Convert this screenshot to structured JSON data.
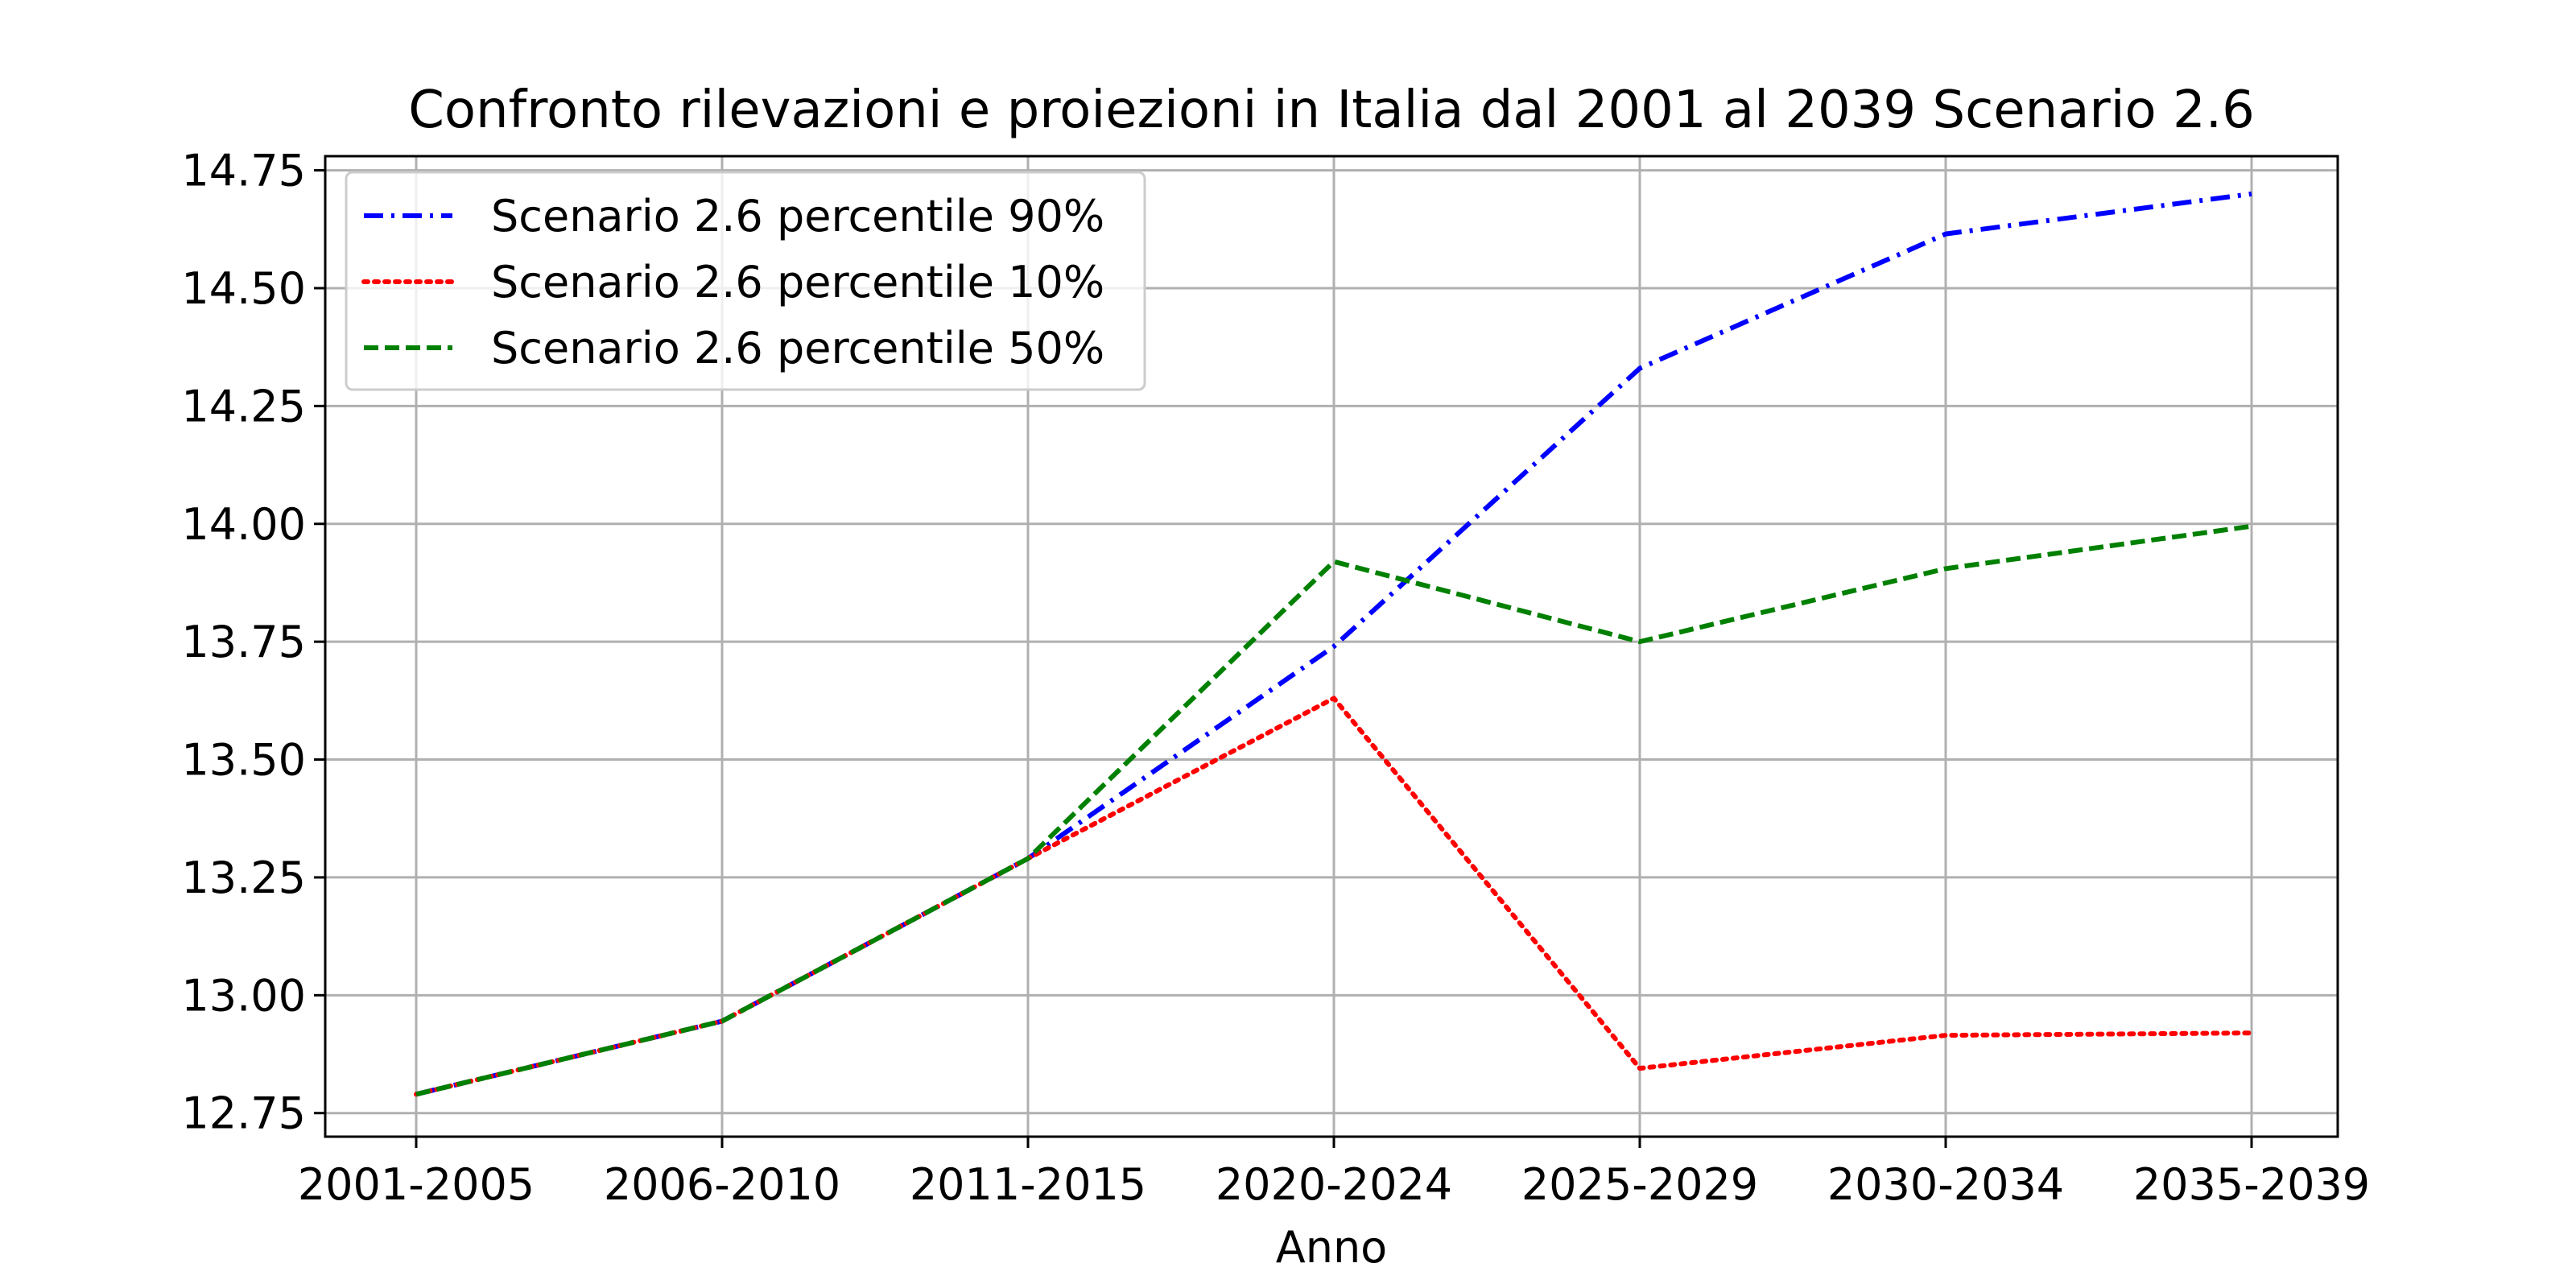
{
  "chart_data": {
    "type": "line",
    "title": "Confronto rilevazioni e proiezioni in Italia dal 2001 al 2039 Scenario 2.6",
    "xlabel": "Anno",
    "ylabel": "",
    "categories": [
      "2001-2005",
      "2006-2010",
      "2011-2015",
      "2020-2024",
      "2025-2029",
      "2030-2034",
      "2035-2039"
    ],
    "ylim": [
      12.7,
      14.78
    ],
    "yticks": [
      12.75,
      13.0,
      13.25,
      13.5,
      13.75,
      14.0,
      14.25,
      14.5,
      14.75
    ],
    "ytick_labels": [
      "12.75",
      "13.00",
      "13.25",
      "13.50",
      "13.75",
      "14.00",
      "14.25",
      "14.50",
      "14.75"
    ],
    "grid": true,
    "legend_position": "top-left",
    "series": [
      {
        "name": "Scenario 2.6 percentile 90%",
        "color": "#0000ff",
        "style": "dashdot",
        "values": [
          12.79,
          12.945,
          13.29,
          13.74,
          14.33,
          14.615,
          14.7
        ]
      },
      {
        "name": "Scenario 2.6 percentile 10%",
        "color": "#ff0000",
        "style": "dotted",
        "values": [
          12.79,
          12.945,
          13.29,
          13.63,
          12.845,
          12.915,
          12.92
        ]
      },
      {
        "name": "Scenario 2.6 percentile 50%",
        "color": "#008000",
        "style": "dashed",
        "values": [
          12.79,
          12.945,
          13.29,
          13.92,
          13.75,
          13.905,
          13.995
        ]
      }
    ]
  }
}
